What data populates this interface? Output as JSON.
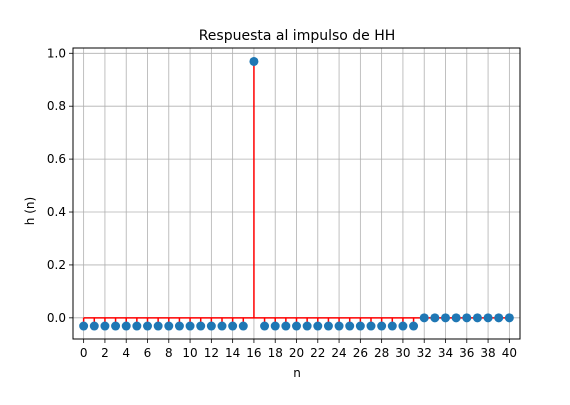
{
  "chart_data": {
    "type": "stem",
    "title": "Respuesta al impulso de HH",
    "xlabel": "n",
    "ylabel": "h (n)",
    "xlim": [
      -1,
      41
    ],
    "ylim": [
      -0.08,
      1.02
    ],
    "xticks": [
      0,
      2,
      4,
      6,
      8,
      10,
      12,
      14,
      16,
      18,
      20,
      22,
      24,
      26,
      28,
      30,
      32,
      34,
      36,
      38,
      40
    ],
    "yticks": [
      0.0,
      0.2,
      0.4,
      0.6,
      0.8,
      1.0
    ],
    "ytick_labels": [
      "0.0",
      "0.2",
      "0.4",
      "0.6",
      "0.8",
      "1.0"
    ],
    "grid": true,
    "x": [
      0,
      1,
      2,
      3,
      4,
      5,
      6,
      7,
      8,
      9,
      10,
      11,
      12,
      13,
      14,
      15,
      16,
      17,
      18,
      19,
      20,
      21,
      22,
      23,
      24,
      25,
      26,
      27,
      28,
      29,
      30,
      31,
      32,
      33,
      34,
      35,
      36,
      37,
      38,
      39,
      40
    ],
    "values": [
      -0.031,
      -0.031,
      -0.031,
      -0.031,
      -0.031,
      -0.031,
      -0.031,
      -0.031,
      -0.031,
      -0.031,
      -0.031,
      -0.031,
      -0.031,
      -0.031,
      -0.031,
      -0.031,
      0.969,
      -0.031,
      -0.031,
      -0.031,
      -0.031,
      -0.031,
      -0.031,
      -0.031,
      -0.031,
      -0.031,
      -0.031,
      -0.031,
      -0.031,
      -0.031,
      -0.031,
      -0.031,
      0.0,
      0.0,
      0.0,
      0.0,
      0.0,
      0.0,
      0.0,
      0.0,
      0.0
    ],
    "colors": {
      "stem": "#ff0000",
      "marker": "#1f77b4",
      "baseline": "#ff0000",
      "grid": "#b0b0b0"
    }
  }
}
